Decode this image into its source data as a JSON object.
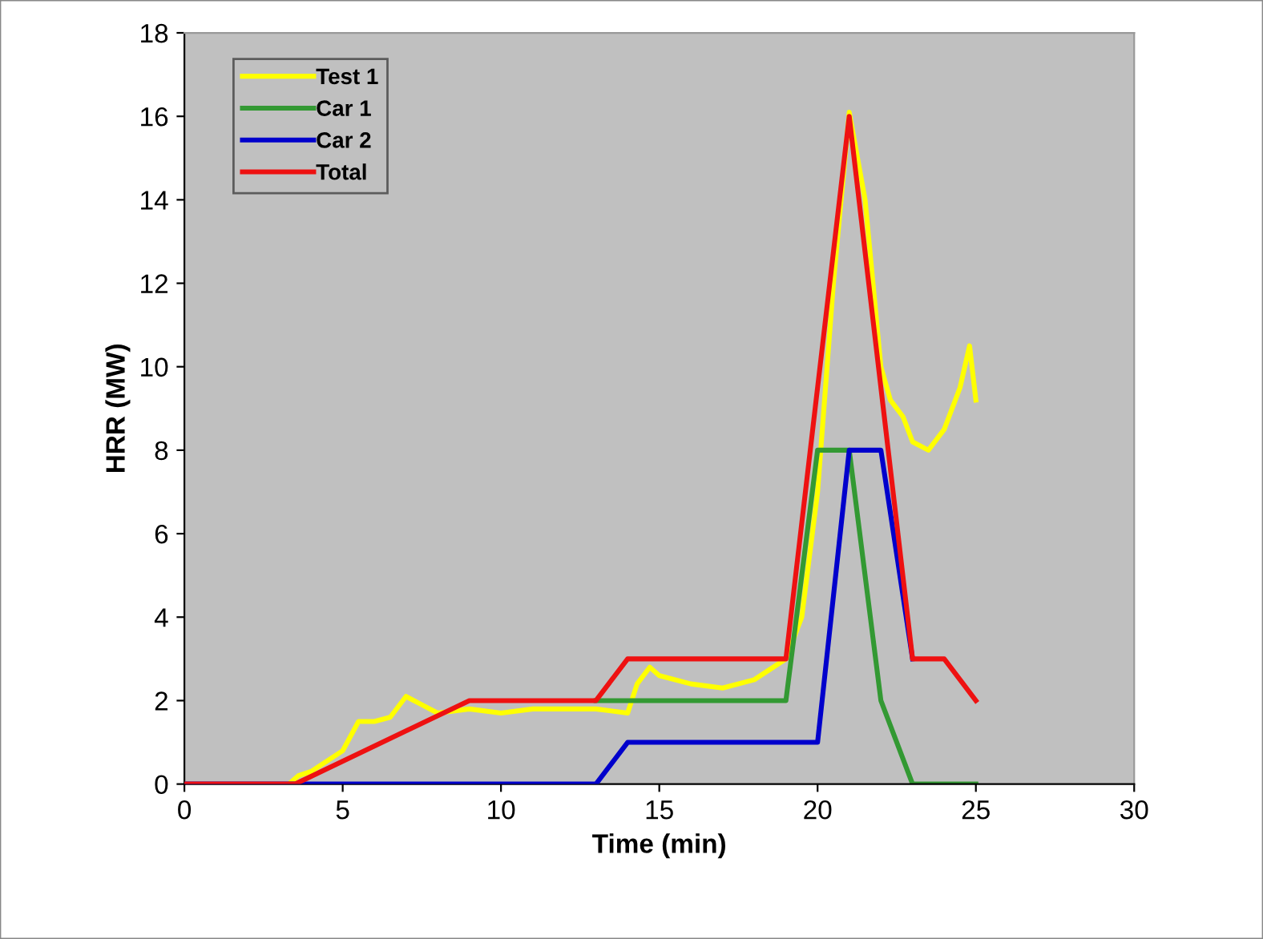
{
  "chart_data": {
    "type": "line",
    "xlabel": "Time (min)",
    "ylabel": "HRR (MW)",
    "xlim": [
      0,
      30
    ],
    "xticks": [
      0,
      5,
      10,
      15,
      20,
      25,
      30
    ],
    "ylim": [
      0,
      18
    ],
    "yticks": [
      0,
      2,
      4,
      6,
      8,
      10,
      12,
      14,
      16,
      18
    ],
    "grid": false,
    "legend": "top left",
    "marker": "none",
    "line_style": "solid",
    "series": [
      {
        "name": "Test 1",
        "color": "#ffff00",
        "x": [
          3.3,
          3.6,
          4,
          5,
          5.5,
          6,
          6.5,
          7,
          7.5,
          8,
          9,
          10,
          11,
          12,
          13,
          14,
          14.3,
          14.7,
          15,
          16,
          17,
          18,
          19,
          19.5,
          20,
          20.5,
          21,
          21.5,
          22,
          22.3,
          22.7,
          23,
          23.5,
          24,
          24.5,
          24.8,
          25
        ],
        "values": [
          0,
          0.2,
          0.3,
          0.8,
          1.5,
          1.5,
          1.6,
          2.1,
          1.9,
          1.7,
          1.8,
          1.7,
          1.8,
          1.8,
          1.8,
          1.7,
          2.4,
          2.8,
          2.6,
          2.4,
          2.3,
          2.5,
          3.0,
          4,
          7,
          12,
          16.1,
          14,
          10,
          9.2,
          8.8,
          8.2,
          8,
          8.5,
          9.5,
          10.5,
          9.2
        ]
      },
      {
        "name": "Car 1",
        "color": "#339933",
        "x": [
          13,
          19,
          20,
          21,
          22,
          23,
          25
        ],
        "values": [
          2,
          2,
          8,
          8,
          2,
          0,
          0
        ]
      },
      {
        "name": "Car 2",
        "color": "#0000cc",
        "x": [
          0,
          13,
          14,
          20,
          21,
          22,
          23
        ],
        "values": [
          0,
          0,
          1,
          1,
          8,
          8,
          3
        ]
      },
      {
        "name": "Total",
        "color": "#ee1111",
        "x": [
          0,
          3.5,
          9,
          13,
          14,
          19,
          21,
          23,
          24,
          25
        ],
        "values": [
          0,
          0,
          2,
          2,
          3,
          3,
          16,
          3,
          3,
          2
        ]
      }
    ]
  }
}
